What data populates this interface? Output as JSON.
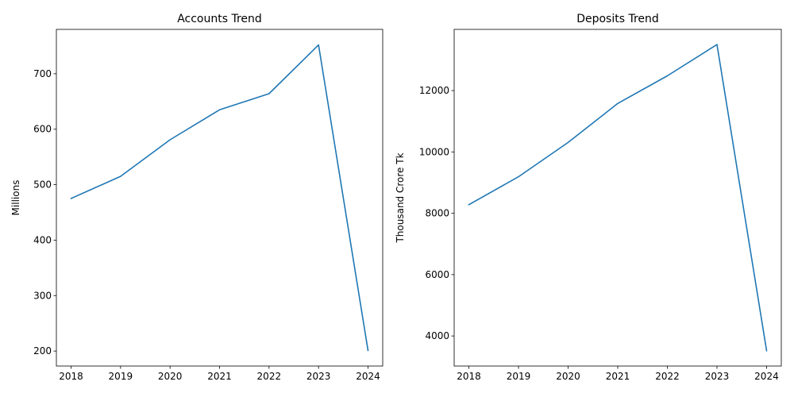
{
  "chart_data": [
    {
      "type": "line",
      "title": "Accounts Trend",
      "xlabel": "",
      "ylabel": "Millions",
      "x": [
        "2018",
        "2019",
        "2020",
        "2021",
        "2022",
        "2023",
        "2024"
      ],
      "series": [
        {
          "values": [
            475,
            515,
            581,
            635,
            664,
            752,
            201
          ],
          "color": "#1f77b4"
        }
      ],
      "ylim": [
        173,
        780
      ],
      "yticks": [
        200,
        300,
        400,
        500,
        600,
        700
      ],
      "grid": false
    },
    {
      "type": "line",
      "title": "Deposits Trend",
      "xlabel": "",
      "ylabel": "Thousand Crore Tk",
      "x": [
        "2018",
        "2019",
        "2020",
        "2021",
        "2022",
        "2023",
        "2024"
      ],
      "series": [
        {
          "values": [
            8280,
            9190,
            10310,
            11580,
            12480,
            13500,
            3520
          ],
          "color": "#1f77b4"
        }
      ],
      "ylim": [
        3020,
        13995
      ],
      "yticks": [
        4000,
        6000,
        8000,
        10000,
        12000
      ],
      "grid": false
    }
  ]
}
